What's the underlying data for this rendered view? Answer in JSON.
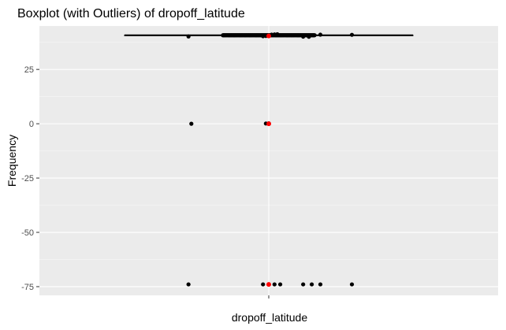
{
  "chart_data": {
    "type": "boxplot",
    "title": "Boxplot (with Outliers) of  dropoff_latitude",
    "xlabel": "dropoff_latitude",
    "ylabel": "Frequency",
    "categories": [
      "dropoff_latitude"
    ],
    "x_ticks": [
      ""
    ],
    "y_ticks": [
      25,
      0,
      -25,
      -50,
      -75
    ],
    "ylim": [
      -79,
      45
    ],
    "grid": true,
    "box": {
      "min": 40.58,
      "q1": 40.73,
      "median": 40.75,
      "q3": 40.77,
      "max": 40.92
    },
    "mean": 40.4,
    "outliers_near": [
      40.2,
      40.3,
      40.4,
      40.5,
      40.6,
      41.0,
      41.1,
      41.2,
      40.1,
      40.05,
      41.0,
      40.95
    ],
    "zero_points": [
      0.0,
      0.1,
      0.2,
      0.0
    ],
    "neg_points": [
      -73.95,
      -73.95,
      -73.95,
      -73.95,
      -73.95,
      -73.95,
      -73.95,
      -73.95,
      -73.95
    ],
    "jitter_outliers": [
      -0.28,
      -0.02,
      -0.01,
      0.0,
      0.0,
      0.01,
      0.02,
      0.03,
      0.12,
      0.14,
      0.18,
      0.29
    ],
    "jitter_zero": [
      -0.27,
      -0.01,
      0.0,
      0.0
    ],
    "jitter_neg": [
      -0.28,
      -0.02,
      0.0,
      0.02,
      0.04,
      0.12,
      0.15,
      0.18,
      0.29
    ],
    "jitter_mean": 0.0,
    "colors": {
      "panel": "#ebebeb",
      "grid_major": "#ffffff",
      "points": "#000000",
      "mean": "#ff0000",
      "box_line": "#000000",
      "tick_label": "#4d4d4d"
    }
  }
}
